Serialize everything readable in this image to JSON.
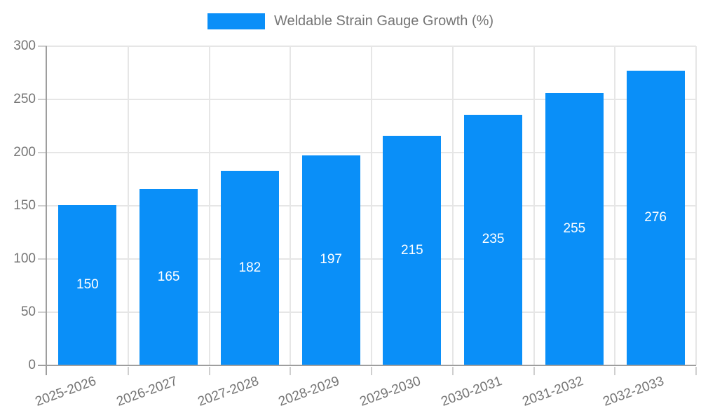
{
  "chart_data": {
    "type": "bar",
    "title": "Weldable Strain Gauge Growth (%)",
    "categories": [
      "2025-2026",
      "2026-2027",
      "2027-2028",
      "2028-2029",
      "2029-2030",
      "2030-2031",
      "2031-2032",
      "2032-2033"
    ],
    "values": [
      150,
      165,
      182,
      197,
      215,
      235,
      255,
      276
    ],
    "xlabel": "",
    "ylabel": "",
    "ylim": [
      0,
      300
    ],
    "yticks": [
      0,
      50,
      100,
      150,
      200,
      250,
      300
    ],
    "grid": true,
    "legend_position": "top-center",
    "value_labels": "inside-center-white",
    "x_label_rotation_deg": -20,
    "colors": {
      "bar": "#0a8ff8",
      "value_label": "#ffffff",
      "text": "#757575",
      "axis_line": "#9e9e9e",
      "gridline": "#e6e6e6",
      "tick": "#cfcfcf",
      "background": "#ffffff"
    }
  }
}
